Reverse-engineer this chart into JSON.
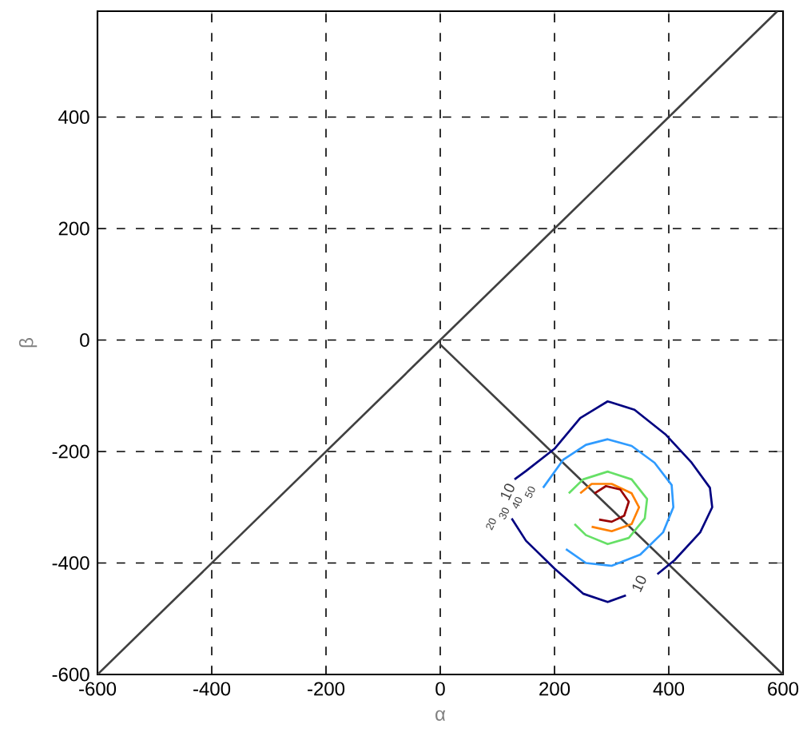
{
  "chart_data": {
    "type": "line",
    "xlabel": "α",
    "ylabel": "β",
    "xlim": [
      -600,
      600
    ],
    "ylim": [
      -600,
      590
    ],
    "xticks": [
      -600,
      -400,
      -200,
      0,
      200,
      400,
      600
    ],
    "yticks": [
      -600,
      -400,
      -200,
      0,
      200,
      400
    ],
    "grid": true,
    "line_style": "solid",
    "marker": "none",
    "series": [
      {
        "color": "#404040",
        "x": [
          -600,
          590
        ],
        "values": [
          -600,
          590
        ]
      },
      {
        "color": "#404040",
        "x": [
          0,
          600
        ],
        "values": [
          -8,
          -600
        ]
      },
      {
        "color": "#000080",
        "x": [
          130,
          150,
          200,
          245,
          293,
          340,
          395,
          440,
          472,
          476,
          455,
          410,
          380,
          355,
          325,
          293,
          250,
          200,
          150,
          125
        ],
        "values": [
          -250,
          -235,
          -195,
          -140,
          -110,
          -125,
          -170,
          -220,
          -265,
          -300,
          -345,
          -395,
          -420,
          null,
          -458,
          -470,
          -455,
          -410,
          -360,
          -320
        ]
      },
      {
        "color": "#2f9bff",
        "x": [
          180,
          215,
          255,
          293,
          335,
          375,
          405,
          408,
          390,
          350,
          300,
          255,
          220
        ],
        "values": [
          -265,
          -215,
          -188,
          -178,
          -190,
          -220,
          -260,
          -300,
          -345,
          -385,
          -405,
          -400,
          -375
        ]
      },
      {
        "color": "#66e066",
        "x": [
          225,
          250,
          293,
          335,
          362,
          358,
          330,
          293,
          255,
          235
        ],
        "values": [
          -275,
          -250,
          -236,
          -250,
          -285,
          -320,
          -355,
          -366,
          -350,
          -330
        ]
      },
      {
        "color": "#ff8000",
        "x": [
          245,
          265,
          300,
          335,
          348,
          335,
          300,
          265
        ],
        "values": [
          -275,
          -258,
          -258,
          -275,
          -300,
          -330,
          -343,
          -335
        ]
      },
      {
        "color": "#990000",
        "x": [
          270,
          290,
          315,
          330,
          322,
          300,
          278
        ],
        "values": [
          -275,
          -262,
          -268,
          -290,
          -315,
          -326,
          -322
        ]
      }
    ],
    "annotations": [
      "10",
      "10",
      "20",
      "30",
      "40",
      "50"
    ]
  }
}
